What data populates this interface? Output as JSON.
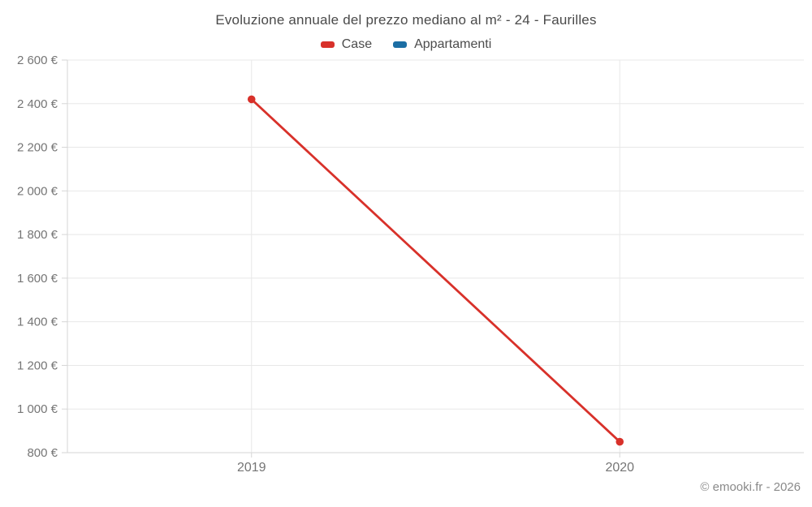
{
  "header": {
    "title": "Evoluzione annuale del prezzo mediano al m² - 24 - Faurilles"
  },
  "legend": {
    "items": [
      {
        "label": "Case",
        "color": "#d8312a"
      },
      {
        "label": "Appartamenti",
        "color": "#1c6ea4"
      }
    ]
  },
  "footer": {
    "copyright": "© emooki.fr - 2026"
  },
  "colors": {
    "grid": "#e8e8e8",
    "axis": "#d6d6d6",
    "tick_text": "#757575",
    "title_text": "#4a4a4a",
    "case_red": "#d8312a",
    "appartamenti_blue": "#1c6ea4"
  },
  "chart_data": {
    "type": "line",
    "title": "Evoluzione annuale del prezzo mediano al m² - 24 - Faurilles",
    "categories": [
      "2019",
      "2020"
    ],
    "series": [
      {
        "name": "Case",
        "color": "#d8312a",
        "values": [
          2420,
          850
        ]
      },
      {
        "name": "Appartamenti",
        "color": "#1c6ea4",
        "values": [
          null,
          null
        ]
      }
    ],
    "xlabel": "",
    "ylabel": "",
    "ylim": [
      800,
      2600
    ],
    "ytick_step": 200,
    "yticks": [
      {
        "value": 800,
        "label": "800 €"
      },
      {
        "value": 1000,
        "label": "1 000 €"
      },
      {
        "value": 1200,
        "label": "1 200 €"
      },
      {
        "value": 1400,
        "label": "1 400 €"
      },
      {
        "value": 1600,
        "label": "1 600 €"
      },
      {
        "value": 1800,
        "label": "1 800 €"
      },
      {
        "value": 2000,
        "label": "2 000 €"
      },
      {
        "value": 2200,
        "label": "2 200 €"
      },
      {
        "value": 2400,
        "label": "2 400 €"
      },
      {
        "value": 2600,
        "label": "2 600 €"
      }
    ],
    "grid": true,
    "legend_position": "top"
  }
}
